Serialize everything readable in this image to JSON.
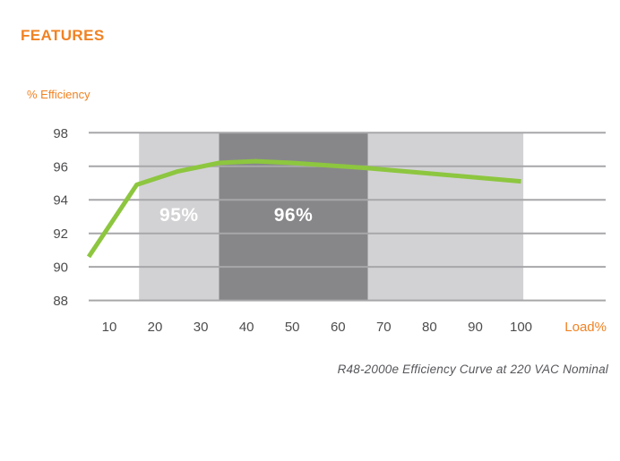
{
  "page": {
    "title": "FEATURES",
    "caption": "R48-2000e Efficiency Curve at 220 VAC Nominal"
  },
  "colors": {
    "accent_orange": "#F08223",
    "line_green": "#8DC63F",
    "band_light": "#D2D2D4",
    "band_dark": "#87878A",
    "gridline": "#A7A7AA",
    "tick_text": "#4D4D4F",
    "caption_text": "#55565A",
    "band_label_text": "#FFFFFF"
  },
  "chart_data": {
    "type": "line",
    "title": "R48-2000e Efficiency Curve at 220 VAC Nominal",
    "xlabel": "Load%",
    "ylabel": "% Efficiency",
    "x_ticks": [
      10,
      20,
      30,
      40,
      50,
      60,
      70,
      80,
      90,
      100
    ],
    "y_ticks": [
      88,
      90,
      92,
      94,
      96,
      98
    ],
    "xlim": [
      5.5,
      118.5
    ],
    "ylim": [
      88,
      98
    ],
    "grid": true,
    "legend": "none",
    "series": [
      {
        "name": "Efficiency",
        "points": [
          [
            5.5,
            90.6
          ],
          [
            16,
            94.9
          ],
          [
            25,
            95.7
          ],
          [
            34,
            96.2
          ],
          [
            42,
            96.3
          ],
          [
            50,
            96.2
          ],
          [
            66,
            95.9
          ],
          [
            100,
            95.1
          ]
        ]
      }
    ],
    "bands": [
      {
        "from": 16.5,
        "to": 34,
        "shade": "light",
        "label": "95%"
      },
      {
        "from": 34,
        "to": 66.5,
        "shade": "dark",
        "label": "96%"
      },
      {
        "from": 66.5,
        "to": 100.5,
        "shade": "light",
        "label": ""
      }
    ]
  }
}
